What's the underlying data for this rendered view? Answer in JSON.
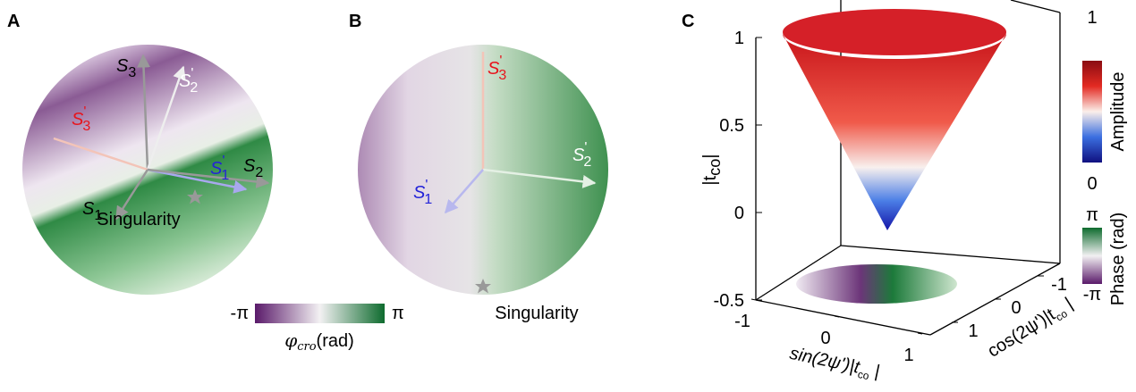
{
  "panel_a": {
    "label": "A",
    "axes": [
      {
        "letter": "S",
        "sub": "3",
        "color": "#000000"
      },
      {
        "letter": "S",
        "sub": "2",
        "sup": "'",
        "color": "#ffffff"
      },
      {
        "letter": "S",
        "sub": "3",
        "sup": "'",
        "color": "#e8141c"
      },
      {
        "letter": "S",
        "sub": "1",
        "sup": "'",
        "color": "#2323d8"
      },
      {
        "letter": "S",
        "sub": "2",
        "color": "#000000"
      },
      {
        "letter": "S",
        "sub": "1",
        "color": "#000000"
      }
    ],
    "singularity": "Singularity",
    "colorbar": {
      "min": "-π",
      "max": "π",
      "symbol": "φ",
      "sub": "cro",
      "unit": "(rad)"
    }
  },
  "panel_b": {
    "label": "B",
    "axes": [
      {
        "letter": "S",
        "sub": "3",
        "sup": "'",
        "color": "#e8141c"
      },
      {
        "letter": "S",
        "sub": "2",
        "sup": "'",
        "color": "#ffffff"
      },
      {
        "letter": "S",
        "sub": "1",
        "sup": "'",
        "color": "#2323d8"
      }
    ],
    "singularity": "Singularity"
  },
  "panel_c": {
    "label": "C",
    "z_ticks": [
      1,
      0.5,
      0,
      -0.5
    ],
    "z_label": {
      "main": "|t",
      "sub": "co",
      "close": "|"
    },
    "x_ticks": [
      -1,
      0,
      1
    ],
    "x_label": {
      "main": "sin(2ψ')|t",
      "sub": "co",
      "close": " |"
    },
    "y_ticks": [
      -1,
      0,
      1
    ],
    "y_label": {
      "main": "cos(2ψ')|t",
      "sub": "co",
      "close": " |"
    },
    "amplitude": {
      "max": 1,
      "min": 0,
      "label": "Amplitude"
    },
    "phase": {
      "max": "π",
      "min": "-π",
      "label": "Phase (rad)"
    }
  }
}
